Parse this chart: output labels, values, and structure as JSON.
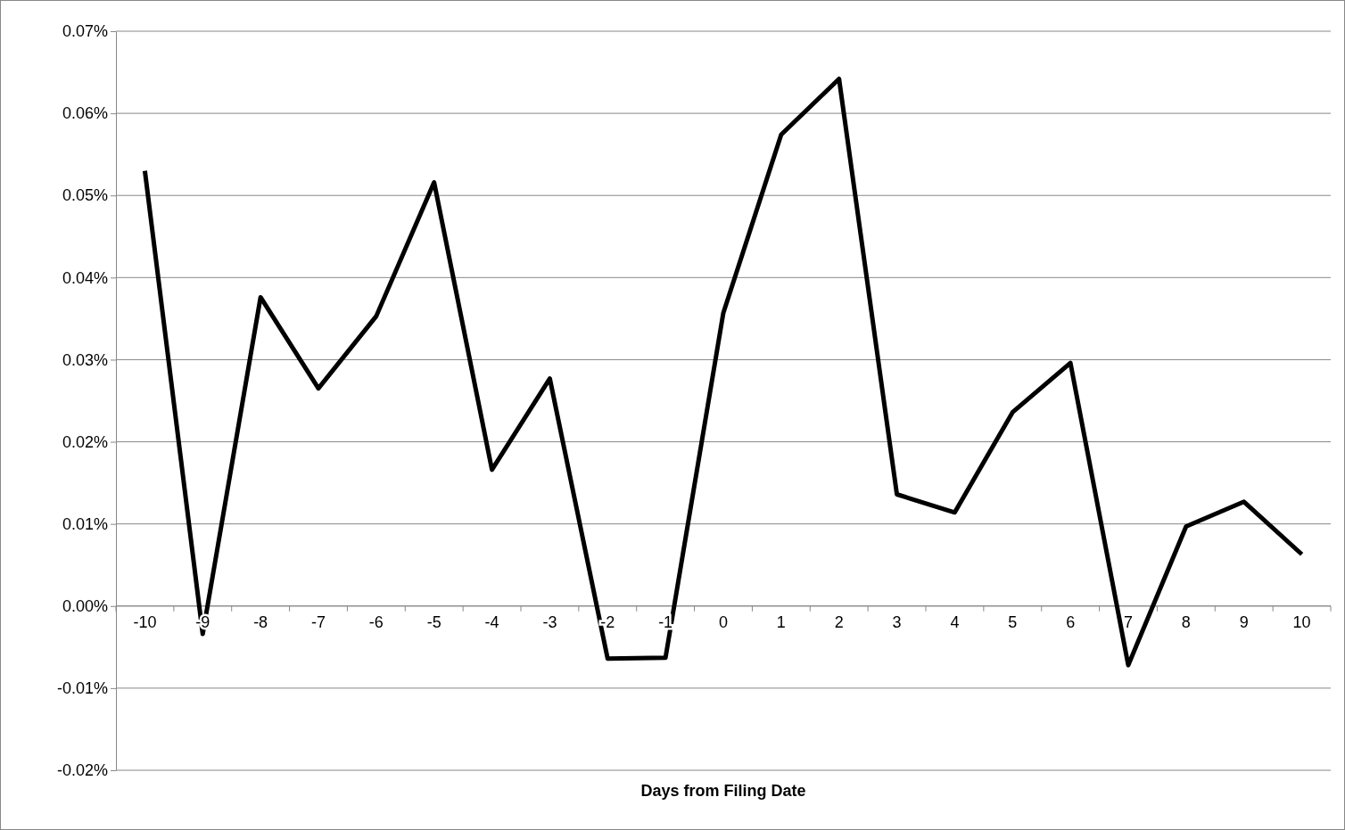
{
  "chart_data": {
    "type": "line",
    "xlabel": "Days from Filing Date",
    "categories": [
      "-10",
      "-9",
      "-8",
      "-7",
      "-6",
      "-5",
      "-4",
      "-3",
      "-2",
      "-1",
      "0",
      "1",
      "2",
      "3",
      "4",
      "5",
      "6",
      "7",
      "8",
      "9",
      "10"
    ],
    "series": [
      {
        "color": "#000000",
        "values": [
          0.053,
          -0.0034,
          0.0376,
          0.0265,
          0.0353,
          0.0516,
          0.0166,
          0.0277,
          -0.0064,
          -0.0063,
          0.0357,
          0.0574,
          0.0642,
          0.0136,
          0.0114,
          0.0236,
          0.0296,
          -0.0072,
          0.0097,
          0.0127,
          0.0063
        ]
      }
    ],
    "ylim": [
      -0.02,
      0.07
    ],
    "yticks": [
      {
        "value": -0.02,
        "label": "-0.02%"
      },
      {
        "value": -0.01,
        "label": "-0.01%"
      },
      {
        "value": 0,
        "label": "0.00%"
      },
      {
        "value": 0.01,
        "label": "0.01%"
      },
      {
        "value": 0.02,
        "label": "0.02%"
      },
      {
        "value": 0.03,
        "label": "0.03%"
      },
      {
        "value": 0.04,
        "label": "0.04%"
      },
      {
        "value": 0.05,
        "label": "0.05%"
      },
      {
        "value": 0.06,
        "label": "0.06%"
      },
      {
        "value": 0.07,
        "label": "0.07%"
      }
    ],
    "grid": "y",
    "marker": "none",
    "line_style": "solid"
  }
}
